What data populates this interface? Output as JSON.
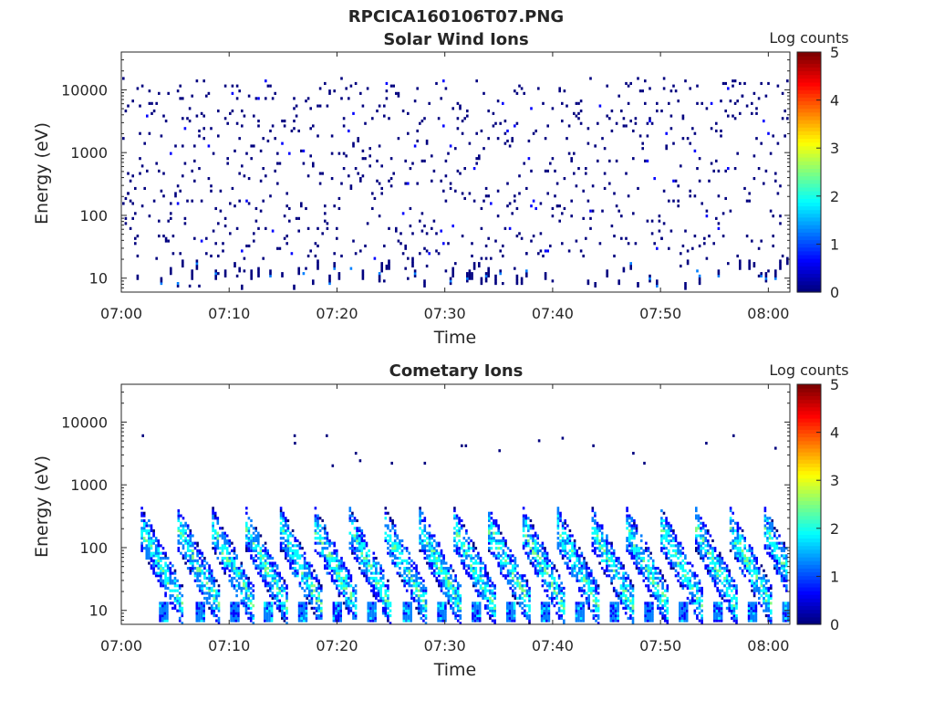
{
  "figure_title": "RPCICA160106T07.PNG",
  "colormap": [
    "#00007f",
    "#0000ff",
    "#007fff",
    "#00ffff",
    "#7fff7f",
    "#ffff00",
    "#ff7f00",
    "#ff0000",
    "#7f0000"
  ],
  "chart_data": [
    {
      "type": "heatmap",
      "title": "Solar Wind Ions",
      "xlabel": "Time",
      "ylabel": "Energy (eV)",
      "x_ticks": [
        "07:00",
        "07:10",
        "07:20",
        "07:30",
        "07:40",
        "07:50",
        "08:00"
      ],
      "x_tick_minutes": [
        0,
        10,
        20,
        30,
        40,
        50,
        60
      ],
      "xlim_minutes": [
        0,
        62
      ],
      "y_scale": "log",
      "y_ticks": [
        10,
        100,
        1000,
        10000
      ],
      "y_tick_labels": [
        "10",
        "100",
        "1000",
        "10000"
      ],
      "ylim": [
        6,
        40000
      ],
      "colorbar": {
        "label": "Log counts",
        "range": [
          0,
          5
        ],
        "ticks": [
          "0",
          "1",
          "2",
          "3",
          "4",
          "5"
        ]
      },
      "pattern": "sparse",
      "description_values": {
        "typical_log_counts": [
          0,
          0.5
        ],
        "max_log_counts": 1.8
      }
    },
    {
      "type": "heatmap",
      "title": "Cometary Ions",
      "xlabel": "Time",
      "ylabel": "Energy (eV)",
      "x_ticks": [
        "07:00",
        "07:10",
        "07:20",
        "07:30",
        "07:40",
        "07:50",
        "08:00"
      ],
      "x_tick_minutes": [
        0,
        10,
        20,
        30,
        40,
        50,
        60
      ],
      "xlim_minutes": [
        0,
        62
      ],
      "y_scale": "log",
      "y_ticks": [
        10,
        100,
        1000,
        10000
      ],
      "y_tick_labels": [
        "10",
        "100",
        "1000",
        "10000"
      ],
      "ylim": [
        6,
        40000
      ],
      "colorbar": {
        "label": "Log counts",
        "range": [
          0,
          5
        ],
        "ticks": [
          "0",
          "1",
          "2",
          "3",
          "4",
          "5"
        ]
      },
      "pattern": "sweeps",
      "sweep_start_minutes": [
        1.8,
        5.2,
        8.4,
        11.5,
        14.7,
        17.9,
        21.1,
        24.4,
        27.6,
        30.8,
        34.0,
        37.2,
        40.4,
        43.6,
        46.8,
        50.0,
        53.2,
        56.4,
        59.6
      ]
    }
  ]
}
